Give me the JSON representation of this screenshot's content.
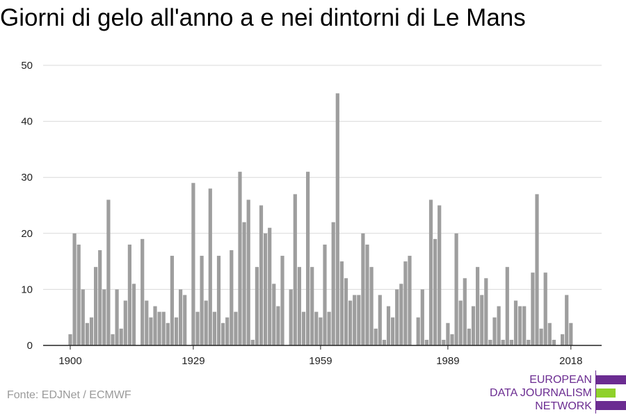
{
  "chart_data": {
    "type": "bar",
    "title": "Giorni di gelo all'anno a e nei dintorni di Le Mans",
    "xlabel": "",
    "ylabel": "",
    "ylim": [
      0,
      50
    ],
    "yticks": [
      0,
      10,
      20,
      30,
      40,
      50
    ],
    "xticks": [
      1900,
      1929,
      1959,
      1989,
      2018
    ],
    "x_start": 1900,
    "values": [
      2,
      20,
      18,
      10,
      4,
      5,
      14,
      17,
      10,
      26,
      2,
      10,
      3,
      8,
      18,
      11,
      0,
      19,
      8,
      5,
      7,
      6,
      6,
      4,
      16,
      5,
      10,
      9,
      0,
      29,
      6,
      16,
      8,
      28,
      6,
      16,
      4,
      5,
      17,
      6,
      31,
      22,
      26,
      1,
      14,
      25,
      20,
      21,
      11,
      7,
      16,
      0,
      10,
      27,
      14,
      6,
      31,
      14,
      6,
      5,
      18,
      6,
      22,
      45,
      15,
      12,
      8,
      9,
      9,
      20,
      18,
      14,
      3,
      9,
      1,
      7,
      5,
      10,
      11,
      15,
      16,
      0,
      5,
      10,
      1,
      26,
      19,
      25,
      1,
      4,
      2,
      20,
      8,
      12,
      3,
      7,
      14,
      9,
      12,
      1,
      5,
      7,
      1,
      14,
      1,
      8,
      7,
      7,
      1,
      13,
      27,
      3,
      13,
      4,
      1,
      0,
      2,
      9,
      4
    ],
    "bar_color": "#9e9e9e",
    "grid": true,
    "grid_color": "#d9d9d9"
  },
  "source": "Fonte: EDJNet / ECMWF",
  "logo": {
    "lines": [
      "EUROPEAN",
      "DATA JOURNALISM",
      "NETWORK"
    ],
    "purple": "#6b2c91",
    "green": "#8fd12b"
  }
}
